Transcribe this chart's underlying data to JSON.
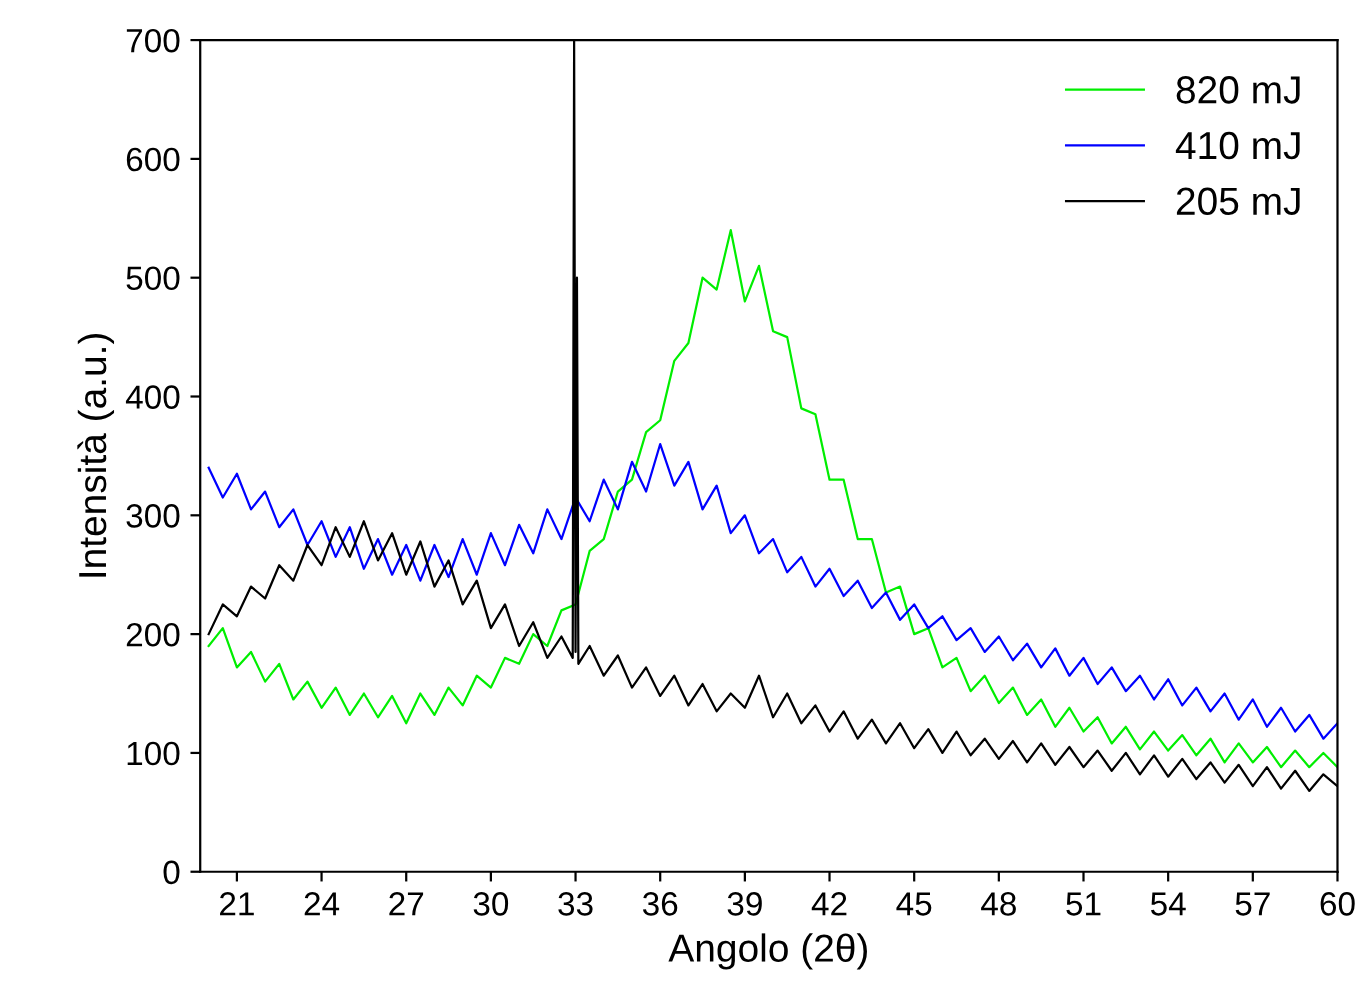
{
  "chart_data": {
    "type": "line",
    "xlabel": "Angolo (2θ)",
    "ylabel": "Intensità (a.u.)",
    "xlim": [
      19.7,
      60
    ],
    "ylim": [
      0,
      700
    ],
    "xticks": [
      21,
      24,
      27,
      30,
      33,
      36,
      39,
      42,
      45,
      48,
      51,
      54,
      57,
      60
    ],
    "yticks": [
      0,
      100,
      200,
      300,
      400,
      500,
      600,
      700
    ],
    "grid": false,
    "legend": "top right",
    "line_style": "solid",
    "marker": "none",
    "series": [
      {
        "name": "820 mJ",
        "color": "#00ee00",
        "x": [
          20,
          20.5,
          21,
          21.5,
          22,
          22.5,
          23,
          23.5,
          24,
          24.5,
          25,
          25.5,
          26,
          26.5,
          27,
          27.5,
          28,
          28.5,
          29,
          29.5,
          30,
          30.5,
          31,
          31.5,
          32,
          32.5,
          33,
          33.5,
          34,
          34.5,
          35,
          35.5,
          36,
          36.5,
          37,
          37.5,
          38,
          38.5,
          39,
          39.5,
          40,
          40.5,
          41,
          41.5,
          42,
          42.5,
          43,
          43.5,
          44,
          44.5,
          45,
          45.5,
          46,
          46.5,
          47,
          47.5,
          48,
          48.5,
          49,
          49.5,
          50,
          50.5,
          51,
          51.5,
          52,
          52.5,
          53,
          53.5,
          54,
          54.5,
          55,
          55.5,
          56,
          56.5,
          57,
          57.5,
          58,
          58.5,
          59,
          59.5,
          60
        ],
        "values": [
          190,
          205,
          172,
          185,
          160,
          175,
          145,
          160,
          138,
          155,
          132,
          150,
          130,
          148,
          125,
          150,
          132,
          155,
          140,
          165,
          155,
          180,
          175,
          200,
          190,
          220,
          225,
          270,
          280,
          320,
          330,
          370,
          380,
          430,
          445,
          500,
          490,
          540,
          480,
          510,
          455,
          450,
          390,
          385,
          330,
          330,
          280,
          280,
          235,
          240,
          200,
          205,
          172,
          180,
          152,
          165,
          142,
          155,
          132,
          145,
          122,
          138,
          118,
          130,
          108,
          122,
          103,
          118,
          102,
          115,
          98,
          112,
          92,
          108,
          92,
          105,
          88,
          102,
          88,
          100,
          88
        ]
      },
      {
        "name": "410 mJ",
        "color": "#0000ff",
        "x": [
          20,
          20.5,
          21,
          21.5,
          22,
          22.5,
          23,
          23.5,
          24,
          24.5,
          25,
          25.5,
          26,
          26.5,
          27,
          27.5,
          28,
          28.5,
          29,
          29.5,
          30,
          30.5,
          31,
          31.5,
          32,
          32.5,
          33,
          33.5,
          34,
          34.5,
          35,
          35.5,
          36,
          36.5,
          37,
          37.5,
          38,
          38.5,
          39,
          39.5,
          40,
          40.5,
          41,
          41.5,
          42,
          42.5,
          43,
          43.5,
          44,
          44.5,
          45,
          45.5,
          46,
          46.5,
          47,
          47.5,
          48,
          48.5,
          49,
          49.5,
          50,
          50.5,
          51,
          51.5,
          52,
          52.5,
          53,
          53.5,
          54,
          54.5,
          55,
          55.5,
          56,
          56.5,
          57,
          57.5,
          58,
          58.5,
          59,
          59.5,
          60
        ],
        "values": [
          340,
          315,
          335,
          305,
          320,
          290,
          305,
          275,
          295,
          265,
          290,
          255,
          280,
          250,
          275,
          245,
          275,
          248,
          280,
          250,
          285,
          258,
          292,
          268,
          305,
          280,
          315,
          295,
          330,
          305,
          345,
          320,
          360,
          325,
          345,
          305,
          325,
          285,
          300,
          268,
          280,
          252,
          265,
          240,
          255,
          232,
          245,
          222,
          235,
          212,
          225,
          205,
          215,
          195,
          205,
          185,
          198,
          178,
          192,
          172,
          188,
          165,
          180,
          158,
          172,
          152,
          165,
          145,
          162,
          140,
          155,
          135,
          150,
          128,
          145,
          122,
          138,
          118,
          132,
          112,
          125
        ]
      },
      {
        "name": "205 mJ",
        "color": "#000000",
        "x": [
          20,
          20.5,
          21,
          21.5,
          22,
          22.5,
          23,
          23.5,
          24,
          24.5,
          25,
          25.5,
          26,
          26.5,
          27,
          27.5,
          28,
          28.5,
          29,
          29.5,
          30,
          30.5,
          31,
          31.5,
          32,
          32.5,
          32.9,
          32.95,
          33.0,
          33.05,
          33.1,
          33.5,
          34,
          34.5,
          35,
          35.5,
          36,
          36.5,
          37,
          37.5,
          38,
          38.5,
          39,
          39.5,
          40,
          40.5,
          41,
          41.5,
          42,
          42.5,
          43,
          43.5,
          44,
          44.5,
          45,
          45.5,
          46,
          46.5,
          47,
          47.5,
          48,
          48.5,
          49,
          49.5,
          50,
          50.5,
          51,
          51.5,
          52,
          52.5,
          53,
          53.5,
          54,
          54.5,
          55,
          55.5,
          56,
          56.5,
          57,
          57.5,
          58,
          58.5,
          59,
          59.5,
          60
        ],
        "values": [
          200,
          225,
          215,
          240,
          230,
          258,
          245,
          275,
          258,
          290,
          265,
          295,
          262,
          285,
          250,
          278,
          240,
          262,
          225,
          245,
          205,
          225,
          190,
          210,
          180,
          198,
          180,
          700,
          185,
          500,
          175,
          190,
          165,
          182,
          155,
          172,
          148,
          165,
          140,
          158,
          135,
          150,
          138,
          165,
          130,
          150,
          125,
          140,
          118,
          135,
          112,
          128,
          108,
          125,
          104,
          120,
          100,
          118,
          98,
          112,
          95,
          110,
          92,
          108,
          90,
          105,
          88,
          102,
          85,
          100,
          82,
          98,
          80,
          95,
          78,
          92,
          75,
          90,
          72,
          88,
          70,
          85,
          68,
          82,
          72
        ]
      }
    ]
  }
}
